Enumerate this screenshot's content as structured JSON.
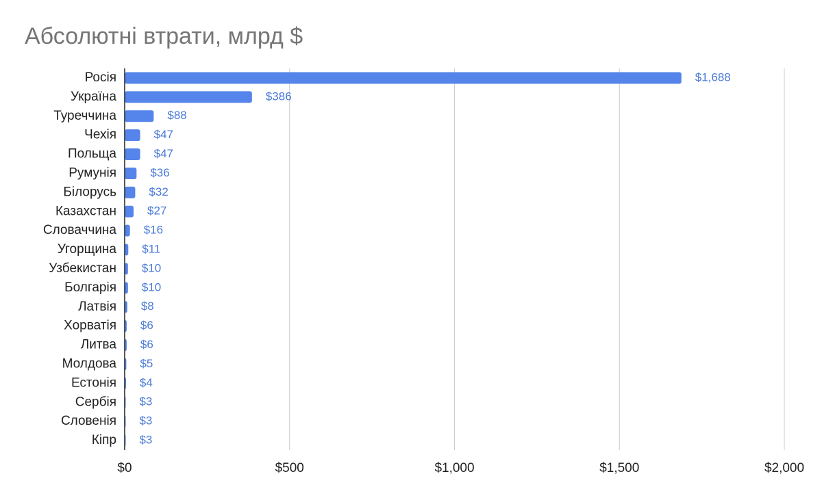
{
  "chart_data": {
    "type": "hbar",
    "title": "Абсолютні втрати, млрд $",
    "categories": [
      "Росія",
      "Україна",
      "Туреччина",
      "Чехія",
      "Польща",
      "Румунія",
      "Білорусь",
      "Казахстан",
      "Словаччина",
      "Угорщина",
      "Узбекистан",
      "Болгарія",
      "Латвія",
      "Хорватія",
      "Литва",
      "Молдова",
      "Естонія",
      "Сербія",
      "Словенія",
      "Кіпр"
    ],
    "values": [
      1688,
      386,
      88,
      47,
      47,
      36,
      32,
      27,
      16,
      11,
      10,
      10,
      8,
      6,
      6,
      5,
      4,
      3,
      3,
      3
    ],
    "value_labels": [
      "$1,688",
      "$386",
      "$88",
      "$47",
      "$47",
      "$36",
      "$32",
      "$27",
      "$16",
      "$11",
      "$10",
      "$10",
      "$8",
      "$6",
      "$6",
      "$5",
      "$4",
      "$3",
      "$3",
      "$3"
    ],
    "color": "#5584ea",
    "xlim": [
      0,
      2000
    ],
    "xticks": [
      {
        "value": 0,
        "label": "$0"
      },
      {
        "value": 500,
        "label": "$500"
      },
      {
        "value": 1000,
        "label": "$1,000"
      },
      {
        "value": 1500,
        "label": "$1,500"
      },
      {
        "value": 2000,
        "label": "$2,000"
      }
    ],
    "grid": true
  }
}
